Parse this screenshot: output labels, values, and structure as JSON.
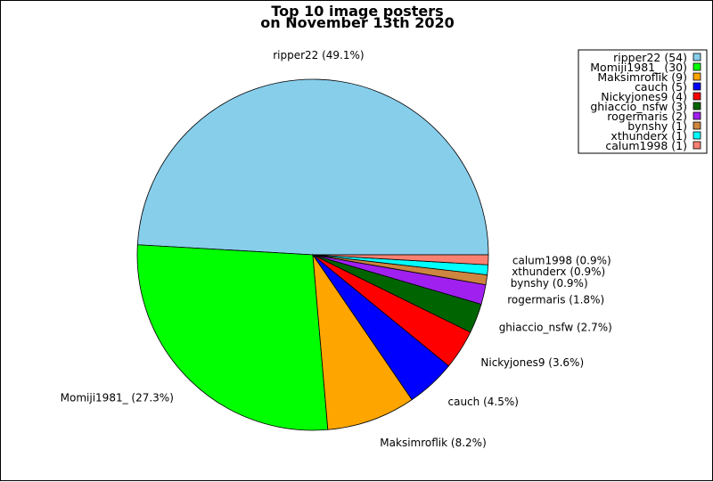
{
  "chart_data": {
    "type": "pie",
    "title": [
      "Top 10 image posters",
      "on November 13th 2020"
    ],
    "legend_position": "top-right",
    "slices": [
      {
        "name": "ripper22",
        "value": 54,
        "percent_label": "ripper22 (49.1%)",
        "legend_label": "ripper22 (54)",
        "color": "#87ceeb"
      },
      {
        "name": "Momiji1981_",
        "value": 30,
        "percent_label": "Momiji1981_ (27.3%)",
        "legend_label": "Momiji1981_ (30)",
        "color": "#00ff00"
      },
      {
        "name": "Maksimroflik",
        "value": 9,
        "percent_label": "Maksimroflik (8.2%)",
        "legend_label": "Maksimroflik (9)",
        "color": "#ffa500"
      },
      {
        "name": "cauch",
        "value": 5,
        "percent_label": "cauch (4.5%)",
        "legend_label": "cauch (5)",
        "color": "#0000ff"
      },
      {
        "name": "Nickyjones9",
        "value": 4,
        "percent_label": "Nickyjones9 (3.6%)",
        "legend_label": "Nickyjones9 (4)",
        "color": "#ff0000"
      },
      {
        "name": "ghiaccio_nsfw",
        "value": 3,
        "percent_label": "ghiaccio_nsfw (2.7%)",
        "legend_label": "ghiaccio_nsfw (3)",
        "color": "#006400"
      },
      {
        "name": "rogermaris",
        "value": 2,
        "percent_label": "rogermaris (1.8%)",
        "legend_label": "rogermaris (2)",
        "color": "#a020f0"
      },
      {
        "name": "bynshy",
        "value": 1,
        "percent_label": "bynshy (0.9%)",
        "legend_label": "bynshy (1)",
        "color": "#cd853f"
      },
      {
        "name": "xthunderx",
        "value": 1,
        "percent_label": "xthunderx (0.9%)",
        "legend_label": "xthunderx (1)",
        "color": "#00ffff"
      },
      {
        "name": "calum1998",
        "value": 1,
        "percent_label": "calum1998 (0.9%)",
        "legend_label": "calum1998 (1)",
        "color": "#fa8072"
      }
    ]
  }
}
